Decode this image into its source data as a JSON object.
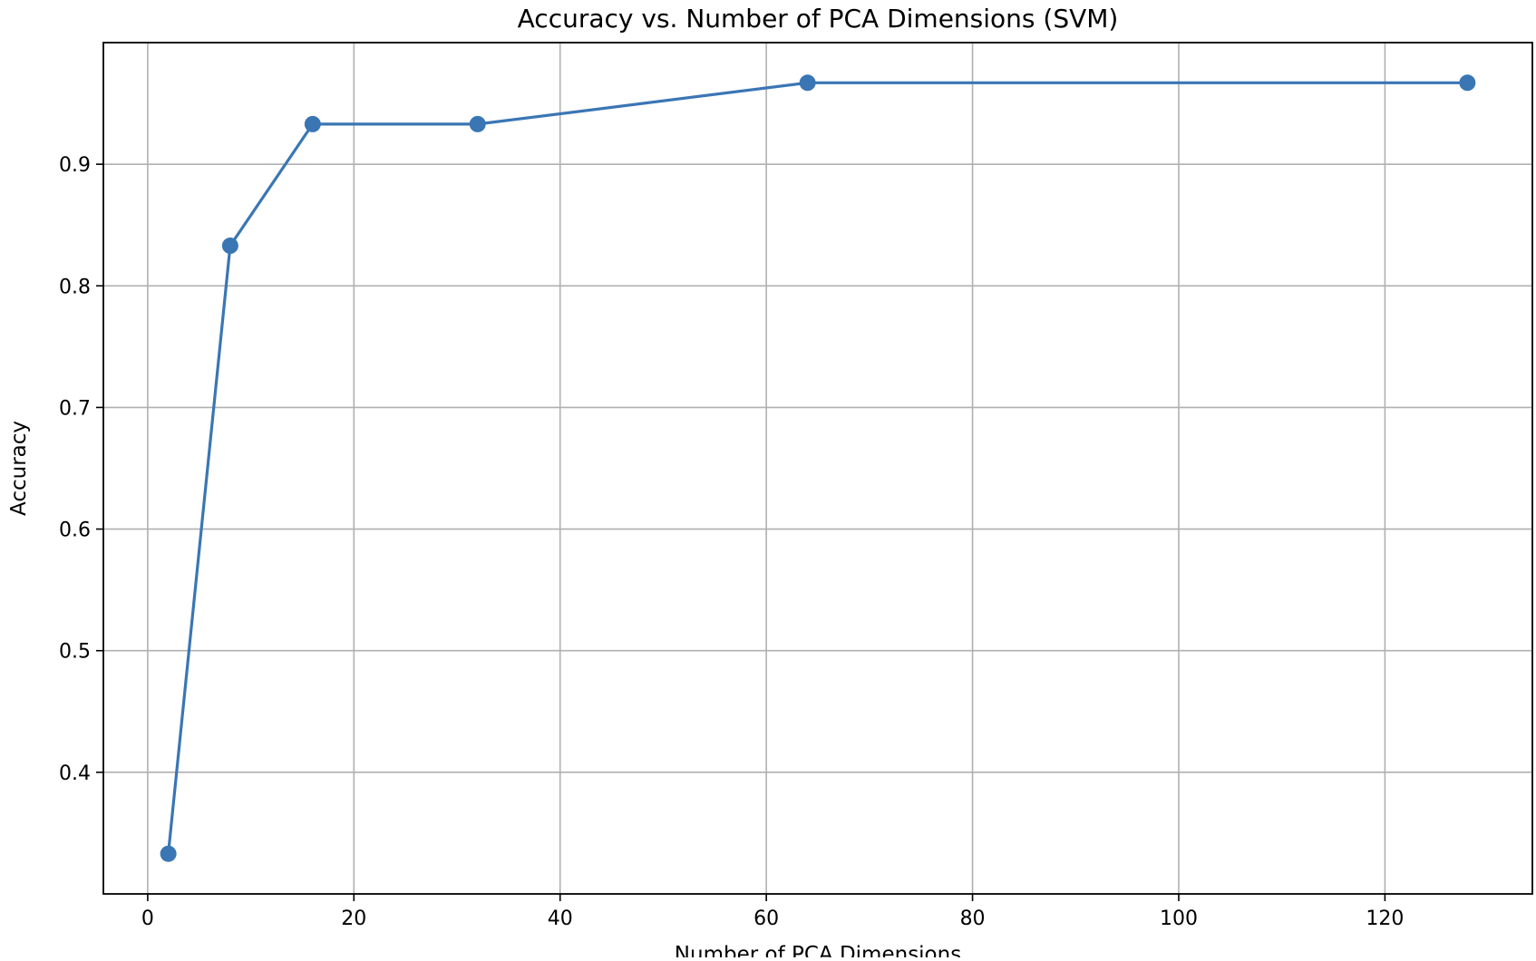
{
  "chart_data": {
    "type": "line",
    "title": "Accuracy vs. Number of PCA Dimensions (SVM)",
    "xlabel": "Number of PCA Dimensions",
    "ylabel": "Accuracy",
    "xlim": [
      -4.3,
      134.3
    ],
    "ylim": [
      0.3,
      1.0
    ],
    "xticks": [
      0,
      20,
      40,
      60,
      80,
      100,
      120
    ],
    "xtick_labels": [
      "0",
      "20",
      "40",
      "60",
      "80",
      "100",
      "120"
    ],
    "yticks": [
      0.4,
      0.5,
      0.6,
      0.7,
      0.8,
      0.9
    ],
    "ytick_labels": [
      "0.4",
      "0.5",
      "0.6",
      "0.7",
      "0.8",
      "0.9"
    ],
    "grid": true,
    "marker": "circle",
    "series": [
      {
        "x": [
          2,
          8,
          16,
          32,
          64,
          128
        ],
        "values": [
          0.333,
          0.833,
          0.933,
          0.933,
          0.967,
          0.967
        ],
        "color": "#3a76b4"
      }
    ]
  }
}
